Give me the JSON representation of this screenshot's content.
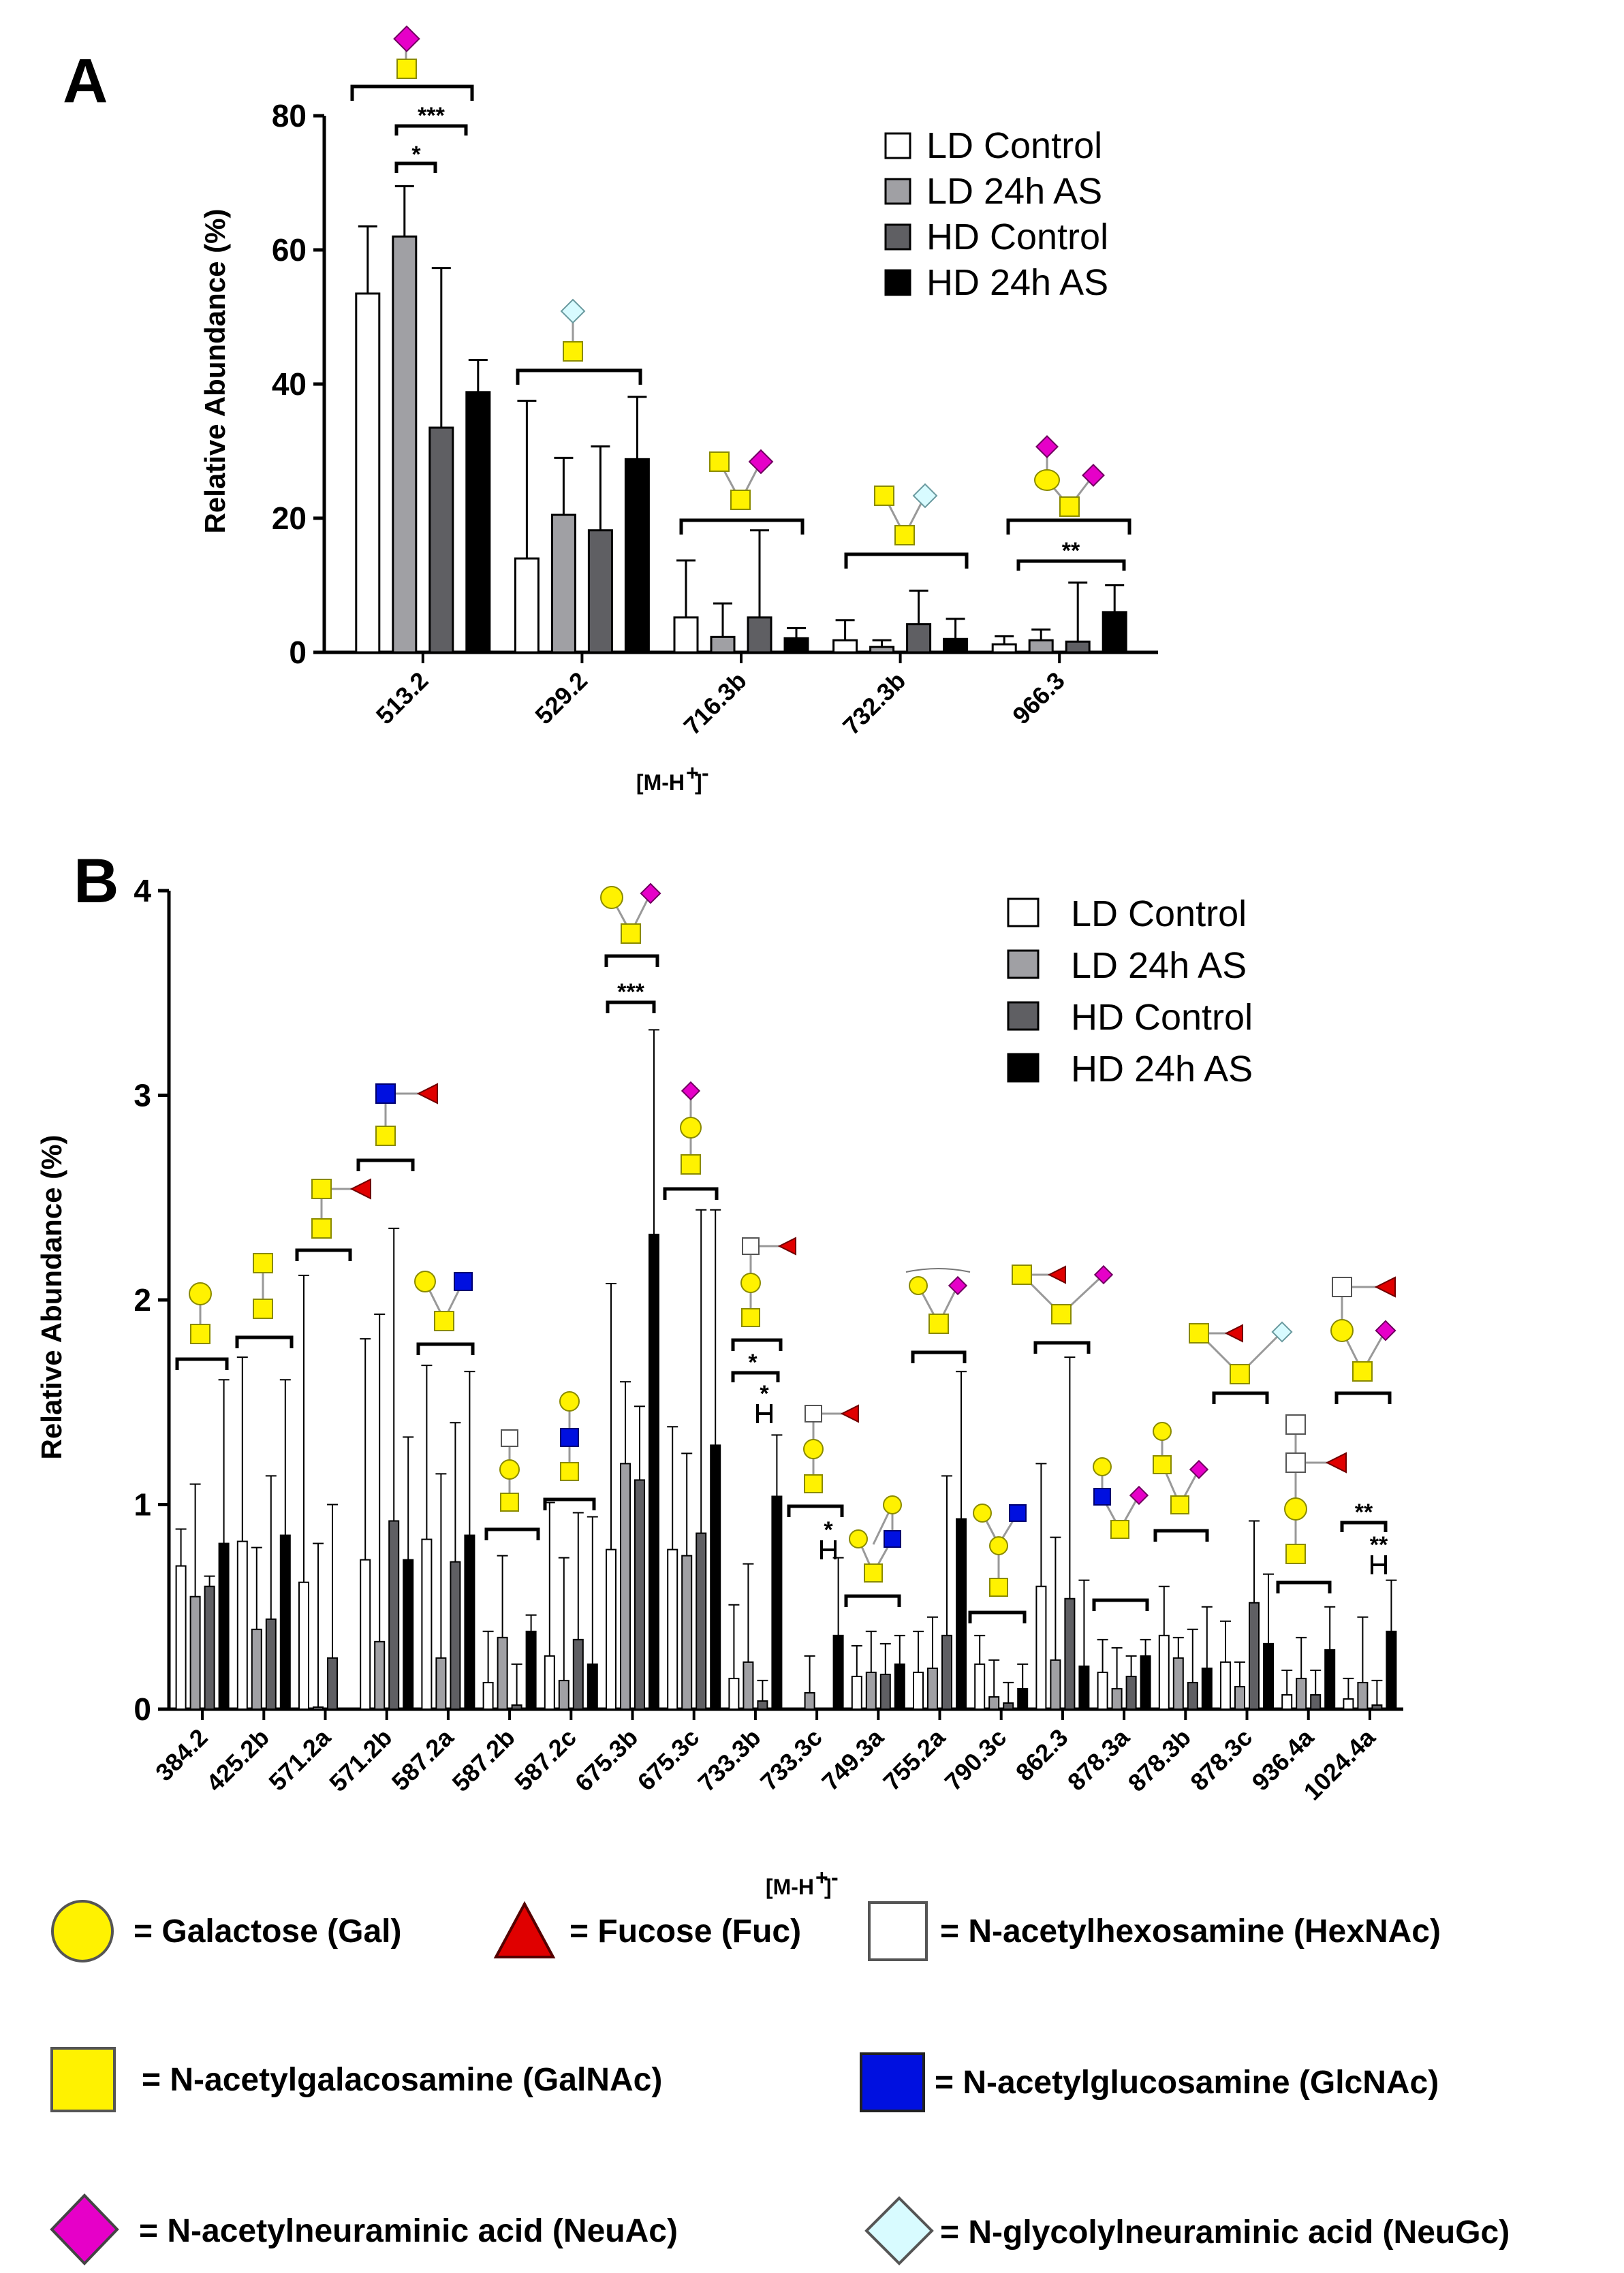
{
  "chart_data": [
    {
      "panel": "A",
      "type": "bar",
      "ylabel": "Relative Abundance (%)",
      "xlabel": "[M-H+]-",
      "ylim": [
        0,
        80
      ],
      "yticks": [
        0,
        20,
        40,
        60,
        80
      ],
      "categories": [
        "513.2",
        "529.2",
        "716.3b",
        "732.3b",
        "966.3"
      ],
      "series": [
        {
          "name": "LD Control",
          "color": "#ffffff",
          "values": [
            53.5,
            14,
            5.2,
            1.8,
            1.2
          ],
          "errors": [
            10,
            23.5,
            8.5,
            3,
            1.2
          ]
        },
        {
          "name": "LD 24h AS",
          "color": "#a0a0a4",
          "values": [
            62,
            20.5,
            2.3,
            0.8,
            1.8
          ],
          "errors": [
            7.5,
            8.5,
            5,
            1,
            1.6
          ]
        },
        {
          "name": "HD Control",
          "color": "#5f5f63",
          "values": [
            33.5,
            18.2,
            5.2,
            4.2,
            1.6
          ],
          "errors": [
            23.8,
            12.5,
            13,
            5,
            8.8
          ]
        },
        {
          "name": "HD 24h AS",
          "color": "#000000",
          "values": [
            38.8,
            28.8,
            2.1,
            2,
            6
          ],
          "errors": [
            4.8,
            9.3,
            1.5,
            3,
            4
          ]
        }
      ],
      "significance": [
        "*",
        "***",
        "**"
      ]
    },
    {
      "panel": "B",
      "type": "bar",
      "ylabel": "Relative Abundance (%)",
      "xlabel": "[M-H+]-",
      "ylim": [
        0,
        4
      ],
      "yticks": [
        0,
        1,
        2,
        3,
        4
      ],
      "categories": [
        "384.2",
        "425.2b",
        "571.2a",
        "571.2b",
        "587.2a",
        "587.2b",
        "587.2c",
        "675.3b",
        "675.3c",
        "733.3b",
        "733.3c",
        "749.3a",
        "755.2a",
        "790.3c",
        "862.3",
        "878.3a",
        "878.3b",
        "878.3c",
        "936.4a",
        "1024.4a"
      ],
      "series": [
        {
          "name": "LD Control",
          "color": "#ffffff",
          "values": [
            0.7,
            0.82,
            0.62,
            0.73,
            0.83,
            0.13,
            0.26,
            0.78,
            0.78,
            0.15,
            0,
            0.16,
            0.18,
            0.22,
            0.6,
            0.18,
            0.36,
            0.23,
            0.07,
            0.05
          ],
          "errors": [
            0.18,
            0.9,
            1.5,
            1.08,
            0.85,
            0.25,
            0.75,
            1.3,
            0.6,
            0.36,
            0,
            0.15,
            0.2,
            0.14,
            0.6,
            0.16,
            0.24,
            0.2,
            0.12,
            0.1
          ]
        },
        {
          "name": "LD 24h AS",
          "color": "#a0a0a4",
          "values": [
            0.55,
            0.39,
            0.01,
            0.33,
            0.25,
            0.35,
            0.14,
            1.2,
            0.75,
            0.23,
            0.08,
            0.18,
            0.2,
            0.06,
            0.24,
            0.1,
            0.25,
            0.11,
            0.15,
            0.13
          ],
          "errors": [
            0.55,
            0.4,
            0.8,
            1.6,
            0.9,
            0.4,
            0.6,
            0.4,
            0.5,
            0.48,
            0.18,
            0.2,
            0.25,
            0.18,
            0.6,
            0.2,
            0.1,
            0.12,
            0.2,
            0.32
          ]
        },
        {
          "name": "HD Control",
          "color": "#5f5f63",
          "values": [
            0.6,
            0.44,
            0.25,
            0.92,
            0.72,
            0.02,
            0.34,
            1.12,
            0.86,
            0.04,
            0,
            0.17,
            0.36,
            0.03,
            0.54,
            0.16,
            0.13,
            0.52,
            0.07,
            0.02
          ],
          "errors": [
            0.05,
            0.7,
            0.75,
            1.43,
            0.68,
            0.2,
            0.62,
            0.36,
            1.58,
            0.1,
            0,
            0.15,
            0.78,
            0.1,
            1.18,
            0.1,
            0.26,
            0.4,
            0.12,
            0.12
          ]
        },
        {
          "name": "HD 24h AS",
          "color": "#000000",
          "values": [
            0.81,
            0.85,
            0,
            0.73,
            0.85,
            0.38,
            0.22,
            2.32,
            1.29,
            1.04,
            0.36,
            0.22,
            0.93,
            0.1,
            0.21,
            0.26,
            0.2,
            0.32,
            0.29,
            0.38
          ],
          "errors": [
            0.8,
            0.76,
            0,
            0.6,
            0.8,
            0.08,
            0.72,
            1.0,
            1.15,
            0.3,
            0.38,
            0.14,
            0.72,
            0.12,
            0.42,
            0.08,
            0.3,
            0.34,
            0.21,
            0.25
          ]
        }
      ],
      "significance": [
        "***",
        "*",
        "*",
        "*",
        "**",
        "**"
      ]
    }
  ],
  "panels": {
    "a_label": "A",
    "b_label": "B"
  },
  "symbol_key": [
    {
      "icon": "yellow-circle",
      "text": "= Galactose (Gal)"
    },
    {
      "icon": "red-triangle",
      "text": "= Fucose (Fuc)"
    },
    {
      "icon": "white-square",
      "text": "= N-acetylhexosamine (HexNAc)"
    },
    {
      "icon": "yellow-square",
      "text": "= N-acetylgalacosamine (GalNAc)"
    },
    {
      "icon": "blue-square",
      "text": "= N-acetylglucosamine (GlcNAc)"
    },
    {
      "icon": "magenta-diamond",
      "text": "= N-acetylneuraminic acid (NeuAc)"
    },
    {
      "icon": "light-cyan-diamond",
      "text": "= N-glycolylneuraminic acid (NeuGc)"
    }
  ]
}
